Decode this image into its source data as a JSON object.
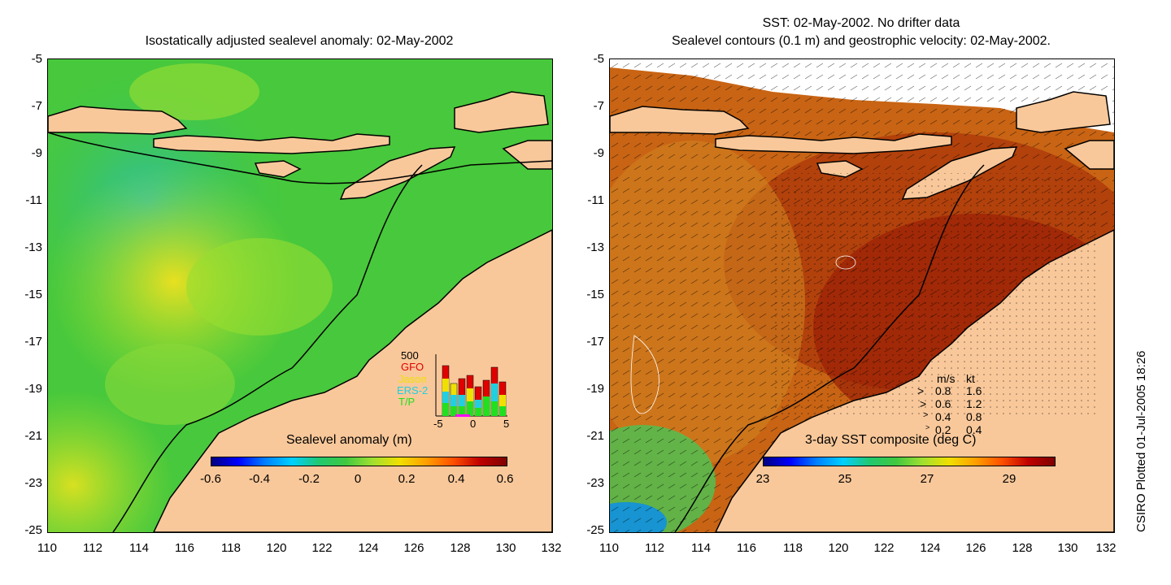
{
  "left_panel": {
    "title": "Isostatically adjusted sealevel anomaly: 02-May-2002",
    "yticks": [
      "-5",
      "-7",
      "-9",
      "-11",
      "-13",
      "-15",
      "-17",
      "-19",
      "-21",
      "-23",
      "-25"
    ],
    "xticks": [
      "110",
      "112",
      "114",
      "116",
      "118",
      "120",
      "122",
      "124",
      "126",
      "128",
      "130",
      "132"
    ],
    "colorbar": {
      "title": "Sealevel anomaly (m)",
      "labels": [
        "-0.6",
        "-0.4",
        "-0.2",
        "0",
        "0.2",
        "0.4",
        "0.6"
      ]
    },
    "inset": {
      "max_label": "500",
      "satellites": [
        {
          "name": "GFO",
          "color": "#e00000"
        },
        {
          "name": "Jason",
          "color": "#f0e000"
        },
        {
          "name": "ERS-2",
          "color": "#20d0e0"
        },
        {
          "name": "T/P",
          "color": "#20e020"
        }
      ],
      "x_labels": [
        "-5",
        "0",
        "5"
      ]
    }
  },
  "right_panel": {
    "title_line1": "SST: 02-May-2002. No drifter data",
    "title_line2": "Sealevel contours (0.1 m) and geostrophic velocity: 02-May-2002.",
    "yticks": [
      "-5",
      "-7",
      "-9",
      "-11",
      "-13",
      "-15",
      "-17",
      "-19",
      "-21",
      "-23",
      "-25"
    ],
    "xticks": [
      "110",
      "112",
      "114",
      "116",
      "118",
      "120",
      "122",
      "124",
      "126",
      "128",
      "130",
      "132"
    ],
    "colorbar": {
      "title": "3-day SST composite (deg C)",
      "labels": [
        "23",
        "25",
        "27",
        "29"
      ]
    },
    "velocity_legend": {
      "header_ms": "m/s",
      "header_kt": "kt",
      "rows": [
        {
          "ms": "0.8",
          "kt": "1.6"
        },
        {
          "ms": "0.6",
          "kt": "1.2"
        },
        {
          "ms": "0.4",
          "kt": "0.8"
        },
        {
          "ms": "0.2",
          "kt": "0.4"
        }
      ]
    }
  },
  "side_note": "CSIRO Plotted 01-Jul-2005 18:26",
  "colors": {
    "land": "#f9c89a",
    "sla_base": "#3cc83c",
    "sst_base": "#c0500a"
  }
}
